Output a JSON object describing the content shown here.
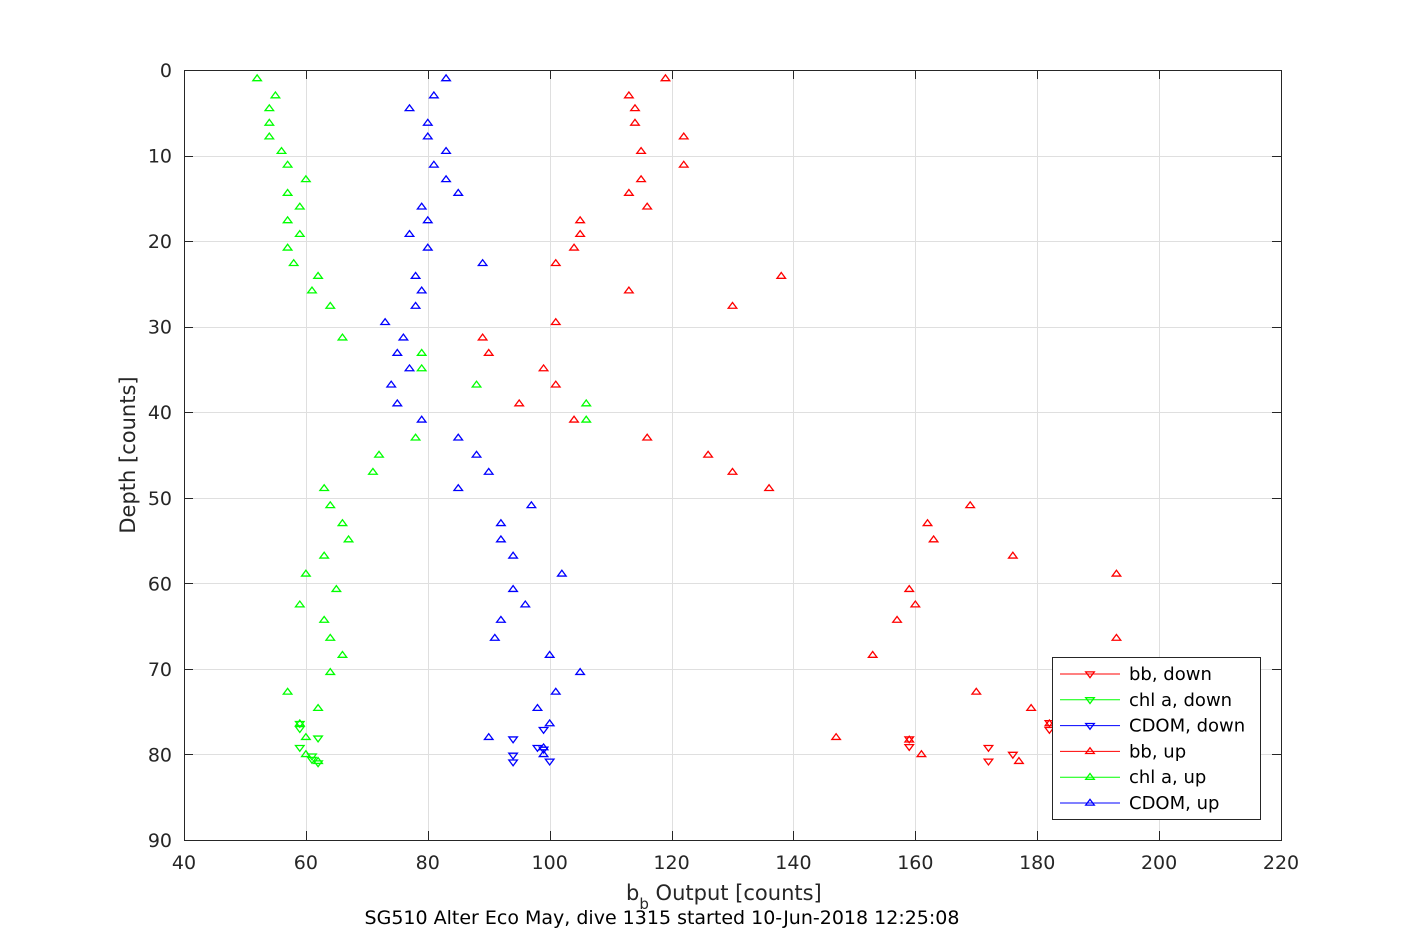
{
  "chart_data": {
    "type": "scatter",
    "xlabel_main": "b",
    "xlabel_sub": "b",
    "xlabel_rest": " Output [counts]",
    "ylabel": "Depth [counts]",
    "caption": "SG510 Alter Eco May, dive 1315 started 10-Jun-2018 12:25:08",
    "xlim": [
      40,
      220
    ],
    "ylim": [
      0,
      90
    ],
    "y_reversed": true,
    "xticks": [
      40,
      60,
      80,
      100,
      120,
      140,
      160,
      180,
      200,
      220
    ],
    "yticks": [
      0,
      10,
      20,
      30,
      40,
      50,
      60,
      70,
      80,
      90
    ],
    "grid": true,
    "legend_position": "bottom-right",
    "series": [
      {
        "name": "bb, down",
        "color": "#ff0000",
        "marker": "triangle-down",
        "points": [
          [
            159,
            78.2
          ],
          [
            159,
            79.1
          ],
          [
            172,
            79.2
          ],
          [
            176,
            80.0
          ],
          [
            172,
            80.8
          ],
          [
            182,
            76.3
          ],
          [
            182,
            77.1
          ]
        ]
      },
      {
        "name": "chl a, down",
        "color": "#00ff00",
        "marker": "triangle-down",
        "points": [
          [
            59,
            76.4
          ],
          [
            59,
            77.0
          ],
          [
            62,
            78.1
          ],
          [
            59,
            79.2
          ],
          [
            61,
            80.2
          ],
          [
            62,
            81.0
          ],
          [
            61,
            80.6
          ]
        ]
      },
      {
        "name": "CDOM, down",
        "color": "#0000ff",
        "marker": "triangle-down",
        "points": [
          [
            94,
            78.2
          ],
          [
            98,
            79.2
          ],
          [
            99,
            77.1
          ],
          [
            94,
            80.1
          ],
          [
            94,
            80.9
          ],
          [
            100,
            80.8
          ],
          [
            99,
            79.4
          ]
        ]
      },
      {
        "name": "bb, up",
        "color": "#ff0000",
        "marker": "triangle-up",
        "points": [
          [
            119,
            1
          ],
          [
            113,
            3
          ],
          [
            114,
            4.5
          ],
          [
            114,
            6.2
          ],
          [
            122,
            7.8
          ],
          [
            115,
            9.5
          ],
          [
            122,
            11.1
          ],
          [
            115,
            12.8
          ],
          [
            113,
            14.4
          ],
          [
            116,
            16
          ],
          [
            105,
            17.6
          ],
          [
            105,
            19.2
          ],
          [
            104,
            20.8
          ],
          [
            101,
            22.6
          ],
          [
            138,
            24.1
          ],
          [
            113,
            25.8
          ],
          [
            130,
            27.6
          ],
          [
            101,
            29.5
          ],
          [
            89,
            31.3
          ],
          [
            90,
            33.1
          ],
          [
            99,
            34.9
          ],
          [
            101,
            36.8
          ],
          [
            95,
            39
          ],
          [
            104,
            40.9
          ],
          [
            116,
            43
          ],
          [
            126,
            45
          ],
          [
            130,
            47
          ],
          [
            136,
            48.9
          ],
          [
            169,
            50.9
          ],
          [
            162,
            53
          ],
          [
            163,
            54.9
          ],
          [
            176,
            56.8
          ],
          [
            193,
            58.9
          ],
          [
            159,
            60.7
          ],
          [
            160,
            62.5
          ],
          [
            157,
            64.3
          ],
          [
            193,
            66.4
          ],
          [
            153,
            68.4
          ],
          [
            170,
            72.7
          ],
          [
            179,
            74.6
          ],
          [
            182,
            76.4
          ],
          [
            147,
            78
          ],
          [
            159,
            78.3
          ],
          [
            161,
            80
          ],
          [
            177,
            80.8
          ]
        ]
      },
      {
        "name": "chl a, up",
        "color": "#00ff00",
        "marker": "triangle-up",
        "points": [
          [
            52,
            1
          ],
          [
            55,
            3
          ],
          [
            54,
            4.5
          ],
          [
            54,
            6.2
          ],
          [
            54,
            7.8
          ],
          [
            56,
            9.5
          ],
          [
            57,
            11.1
          ],
          [
            60,
            12.8
          ],
          [
            57,
            14.4
          ],
          [
            59,
            16
          ],
          [
            57,
            17.6
          ],
          [
            59,
            19.2
          ],
          [
            57,
            20.8
          ],
          [
            58,
            22.6
          ],
          [
            62,
            24.1
          ],
          [
            61,
            25.8
          ],
          [
            64,
            27.6
          ],
          [
            66,
            31.3
          ],
          [
            79,
            33.1
          ],
          [
            79,
            34.9
          ],
          [
            88,
            36.8
          ],
          [
            106,
            39
          ],
          [
            106,
            40.9
          ],
          [
            78,
            43
          ],
          [
            72,
            45
          ],
          [
            71,
            47
          ],
          [
            63,
            48.9
          ],
          [
            64,
            50.9
          ],
          [
            66,
            53
          ],
          [
            67,
            54.9
          ],
          [
            63,
            56.8
          ],
          [
            60,
            58.9
          ],
          [
            65,
            60.7
          ],
          [
            59,
            62.5
          ],
          [
            63,
            64.3
          ],
          [
            64,
            66.4
          ],
          [
            66,
            68.4
          ],
          [
            64,
            70.4
          ],
          [
            57,
            72.7
          ],
          [
            62,
            74.6
          ],
          [
            59,
            76.4
          ],
          [
            60,
            78
          ],
          [
            60,
            80
          ],
          [
            62,
            80.8
          ]
        ]
      },
      {
        "name": "CDOM, up",
        "color": "#0000ff",
        "marker": "triangle-up",
        "points": [
          [
            83,
            1
          ],
          [
            81,
            3
          ],
          [
            77,
            4.5
          ],
          [
            80,
            6.2
          ],
          [
            80,
            7.8
          ],
          [
            83,
            9.5
          ],
          [
            81,
            11.1
          ],
          [
            83,
            12.8
          ],
          [
            85,
            14.4
          ],
          [
            79,
            16
          ],
          [
            80,
            17.6
          ],
          [
            77,
            19.2
          ],
          [
            80,
            20.8
          ],
          [
            89,
            22.6
          ],
          [
            78,
            24.1
          ],
          [
            79,
            25.8
          ],
          [
            78,
            27.6
          ],
          [
            73,
            29.5
          ],
          [
            76,
            31.3
          ],
          [
            75,
            33.1
          ],
          [
            77,
            34.9
          ],
          [
            74,
            36.8
          ],
          [
            75,
            39
          ],
          [
            79,
            40.9
          ],
          [
            85,
            43
          ],
          [
            88,
            45
          ],
          [
            90,
            47
          ],
          [
            85,
            48.9
          ],
          [
            97,
            50.9
          ],
          [
            92,
            53
          ],
          [
            92,
            54.9
          ],
          [
            94,
            56.8
          ],
          [
            102,
            58.9
          ],
          [
            94,
            60.7
          ],
          [
            96,
            62.5
          ],
          [
            92,
            64.3
          ],
          [
            91,
            66.4
          ],
          [
            100,
            68.4
          ],
          [
            105,
            70.4
          ],
          [
            101,
            72.7
          ],
          [
            98,
            74.6
          ],
          [
            100,
            76.4
          ],
          [
            90,
            78
          ],
          [
            99,
            79.2
          ],
          [
            99,
            80
          ]
        ]
      }
    ]
  }
}
